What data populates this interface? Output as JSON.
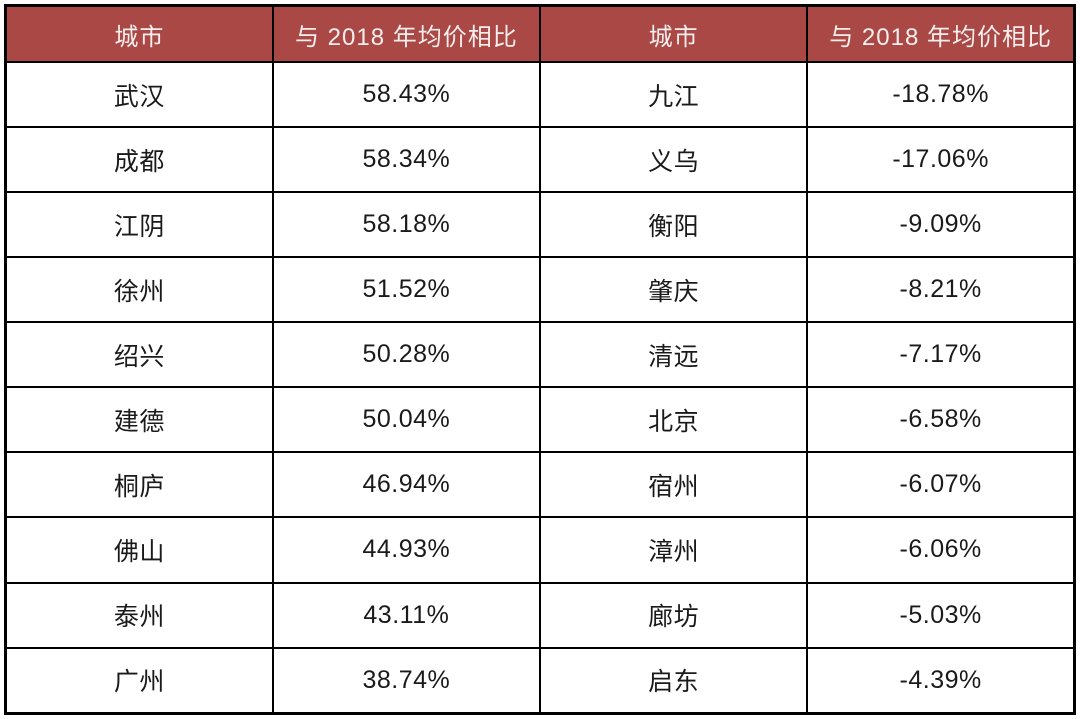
{
  "colors": {
    "header_bg": "#A94845",
    "header_text": "#F7EFED",
    "body_text": "#1A1A1A",
    "border": "#000000",
    "row_bg": "#FFFFFF"
  },
  "chart_data": {
    "type": "table",
    "columns": [
      "城市",
      "与 2018 年均价相比",
      "城市",
      "与 2018 年均价相比"
    ],
    "rows": [
      [
        "武汉",
        "58.43%",
        "九江",
        "-18.78%"
      ],
      [
        "成都",
        "58.34%",
        "义乌",
        "-17.06%"
      ],
      [
        "江阴",
        "58.18%",
        "衡阳",
        "-9.09%"
      ],
      [
        "徐州",
        "51.52%",
        "肇庆",
        "-8.21%"
      ],
      [
        "绍兴",
        "50.28%",
        "清远",
        "-7.17%"
      ],
      [
        "建德",
        "50.04%",
        "北京",
        "-6.58%"
      ],
      [
        "桐庐",
        "46.94%",
        "宿州",
        "-6.07%"
      ],
      [
        "佛山",
        "44.93%",
        "漳州",
        "-6.06%"
      ],
      [
        "泰州",
        "43.11%",
        "廊坊",
        "-5.03%"
      ],
      [
        "广州",
        "38.74%",
        "启东",
        "-4.39%"
      ]
    ],
    "series": [
      {
        "name": "left",
        "categories": [
          "武汉",
          "成都",
          "江阴",
          "徐州",
          "绍兴",
          "建德",
          "桐庐",
          "佛山",
          "泰州",
          "广州"
        ],
        "values_percent": [
          58.43,
          58.34,
          58.18,
          51.52,
          50.28,
          50.04,
          46.94,
          44.93,
          43.11,
          38.74
        ]
      },
      {
        "name": "right",
        "categories": [
          "九江",
          "义乌",
          "衡阳",
          "肇庆",
          "清远",
          "北京",
          "宿州",
          "漳州",
          "廊坊",
          "启东"
        ],
        "values_percent": [
          -18.78,
          -17.06,
          -9.09,
          -8.21,
          -7.17,
          -6.58,
          -6.07,
          -6.06,
          -5.03,
          -4.39
        ]
      }
    ]
  }
}
